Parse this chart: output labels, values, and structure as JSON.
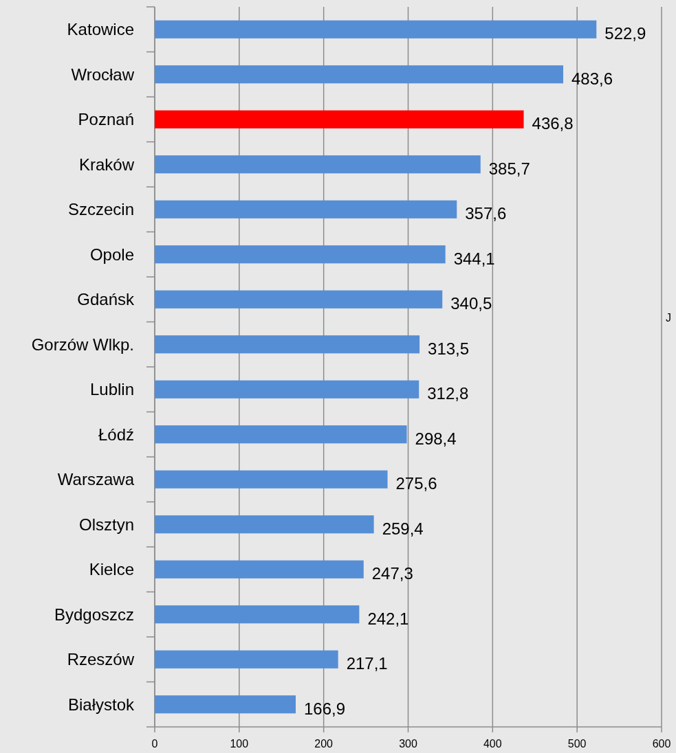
{
  "chart_data": {
    "type": "bar",
    "orientation": "horizontal",
    "categories": [
      "Katowice",
      "Wrocław",
      "Poznań",
      "Kraków",
      "Szczecin",
      "Opole",
      "Gdańsk",
      "Gorzów Wlkp.",
      "Lublin",
      "Łódź",
      "Warszawa",
      "Olsztyn",
      "Kielce",
      "Bydgoszcz",
      "Rzeszów",
      "Białystok"
    ],
    "values": [
      522.9,
      483.6,
      436.8,
      385.7,
      357.6,
      344.1,
      340.5,
      313.5,
      312.8,
      298.4,
      275.6,
      259.4,
      247.3,
      242.1,
      217.1,
      166.9
    ],
    "value_labels": [
      "522,9",
      "483,6",
      "436,8",
      "385,7",
      "357,6",
      "344,1",
      "340,5",
      "313,5",
      "312,8",
      "298,4",
      "275,6",
      "259,4",
      "247,3",
      "242,1",
      "217,1",
      "166,9"
    ],
    "colors": [
      "#558ed5",
      "#558ed5",
      "#ff0000",
      "#558ed5",
      "#558ed5",
      "#558ed5",
      "#558ed5",
      "#558ed5",
      "#558ed5",
      "#558ed5",
      "#558ed5",
      "#558ed5",
      "#558ed5",
      "#558ed5",
      "#558ed5",
      "#558ed5"
    ],
    "xlim": [
      0,
      600
    ],
    "xticks": [
      0,
      100,
      200,
      300,
      400,
      500,
      600
    ],
    "grid": "x",
    "annotations": [
      "J"
    ]
  }
}
